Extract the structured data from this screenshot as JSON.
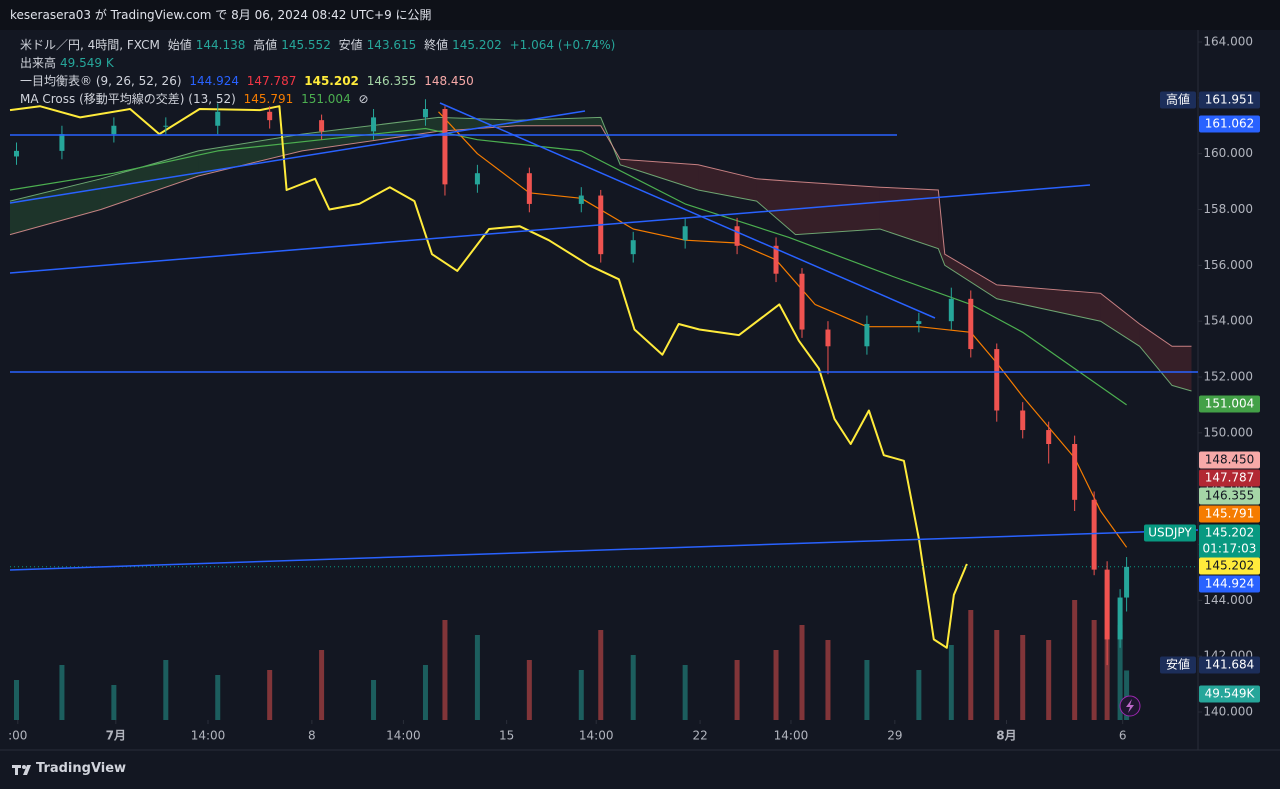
{
  "header": {
    "publish": "keserasera03 が TradingView.com で 8月 06, 2024 08:42 UTC+9 に公開"
  },
  "legend": {
    "symbol": "米ドル／円, 4時間, FXCM",
    "open_label": "始値",
    "open": "144.138",
    "high_label": "高値",
    "high": "145.552",
    "low_label": "安値",
    "low": "143.615",
    "close_label": "終値",
    "close": "145.202",
    "change": "+1.064 (+0.74%)",
    "volume_label": "出来高",
    "volume": "49.549 K",
    "ichimoku_label": "一目均衡表® (9, 26, 52, 26)",
    "ichimoku_values": [
      "144.924",
      "147.787",
      "145.202",
      "146.355",
      "148.450"
    ],
    "ma_label": "MA Cross (移動平均線の交差) (13, 52)",
    "ma_values": [
      "145.791",
      "151.004"
    ],
    "ma_icon": "⊘"
  },
  "footer": {
    "brand": "TradingView"
  },
  "chart_data": {
    "type": "candlestick",
    "grid": false,
    "xlim": [
      0,
      183
    ],
    "ylim": [
      140,
      164
    ],
    "xticks": [
      {
        "value": 1.2,
        "label": ":00"
      },
      {
        "value": 16.3,
        "label": "7月"
      },
      {
        "value": 30.5,
        "label": "14:00"
      },
      {
        "value": 46.5,
        "label": "8"
      },
      {
        "value": 60.6,
        "label": "14:00"
      },
      {
        "value": 76.5,
        "label": "15"
      },
      {
        "value": 90.3,
        "label": "14:00"
      },
      {
        "value": 106.3,
        "label": "22"
      },
      {
        "value": 120.3,
        "label": "14:00"
      },
      {
        "value": 136.3,
        "label": "29"
      },
      {
        "value": 153.5,
        "label": "8月"
      },
      {
        "value": 171.4,
        "label": "6"
      }
    ],
    "yticks": [
      {
        "value": 140,
        "label": "140.000"
      },
      {
        "value": 142,
        "label": "142.000"
      },
      {
        "value": 144,
        "label": "144.000"
      },
      {
        "value": 146,
        "label": "146.000"
      },
      {
        "value": 148,
        "label": "148.000"
      },
      {
        "value": 150,
        "label": "150.000"
      },
      {
        "value": 152,
        "label": "152.000"
      },
      {
        "value": 154,
        "label": "154.000"
      },
      {
        "value": 156,
        "label": "156.000"
      },
      {
        "value": 158,
        "label": "158.000"
      },
      {
        "value": 160,
        "label": "160.000"
      },
      {
        "value": 162,
        "label": "162.000"
      },
      {
        "value": 164,
        "label": "164.000"
      }
    ],
    "up_color": "#26a69a",
    "down_color": "#ef5350",
    "x": [
      1,
      8,
      16,
      24,
      32,
      40,
      48,
      56,
      64,
      67,
      72,
      80,
      88,
      91,
      96,
      104,
      112,
      118,
      122,
      126,
      132,
      140,
      145,
      148,
      152,
      156,
      160,
      164,
      167,
      169,
      171,
      172
    ],
    "open": [
      159.9,
      160.1,
      160.7,
      161.0,
      161.0,
      161.5,
      161.2,
      160.8,
      161.3,
      161.6,
      158.9,
      159.3,
      158.2,
      158.5,
      156.4,
      156.9,
      157.4,
      156.7,
      155.7,
      153.7,
      153.1,
      153.9,
      154.0,
      154.8,
      153.0,
      150.8,
      150.1,
      149.6,
      147.6,
      145.1,
      142.6,
      144.1
    ],
    "high": [
      160.4,
      161.0,
      161.3,
      161.3,
      161.8,
      161.7,
      161.4,
      161.6,
      161.95,
      161.7,
      159.6,
      159.5,
      158.8,
      158.7,
      157.2,
      157.7,
      157.7,
      157.0,
      155.9,
      154.0,
      154.2,
      154.3,
      155.2,
      155.1,
      153.2,
      151.1,
      150.4,
      149.9,
      147.9,
      145.4,
      144.4,
      145.55
    ],
    "low": [
      159.6,
      159.8,
      160.4,
      160.7,
      160.7,
      160.9,
      160.5,
      160.5,
      161.0,
      158.5,
      158.6,
      157.9,
      157.9,
      156.1,
      156.1,
      156.6,
      156.4,
      155.4,
      153.4,
      152.1,
      152.8,
      153.6,
      153.7,
      152.7,
      150.4,
      149.8,
      148.9,
      147.2,
      144.9,
      141.68,
      142.3,
      143.6
    ],
    "close": [
      160.1,
      160.7,
      161.0,
      161.0,
      161.5,
      161.2,
      160.8,
      161.3,
      161.6,
      158.9,
      159.3,
      158.2,
      158.5,
      156.4,
      156.9,
      157.4,
      156.7,
      155.7,
      153.7,
      153.1,
      153.9,
      154.0,
      154.8,
      153.0,
      150.8,
      150.1,
      149.6,
      147.6,
      145.1,
      142.6,
      144.1,
      145.2
    ],
    "volume": [
      40,
      55,
      35,
      60,
      45,
      50,
      70,
      40,
      55,
      100,
      85,
      60,
      50,
      90,
      65,
      55,
      60,
      70,
      95,
      80,
      60,
      50,
      75,
      110,
      90,
      85,
      80,
      120,
      100,
      140,
      95,
      49.549
    ],
    "cloud": {
      "x": [
        0,
        14,
        29,
        45,
        66,
        78,
        91,
        94,
        106,
        115,
        121,
        134,
        143,
        144,
        152,
        168,
        174,
        179,
        182
      ],
      "a": [
        158.3,
        159.1,
        160.1,
        160.7,
        161.3,
        161.2,
        161.3,
        159.6,
        158.7,
        158.3,
        157.1,
        157.3,
        156.6,
        156.0,
        154.8,
        154.0,
        153.1,
        151.7,
        151.5
      ],
      "b": [
        157.1,
        158.0,
        159.2,
        160.1,
        160.8,
        161.0,
        161.0,
        159.8,
        159.6,
        159.1,
        159.0,
        158.8,
        158.7,
        156.4,
        155.3,
        155.0,
        153.9,
        153.1,
        153.1
      ],
      "a_color": "#81c784",
      "b_color": "#ef9a9a",
      "up_fill": "#43a047",
      "down_fill": "#b7413e"
    },
    "lines": [
      {
        "color": "#4caf50",
        "x": [
          0,
          16,
          32,
          48,
          64,
          72,
          88,
          104,
          120,
          136,
          148,
          156,
          164,
          172
        ],
        "values": [
          158.7,
          159.3,
          160.1,
          160.5,
          160.9,
          160.5,
          160.1,
          158.2,
          157.0,
          155.6,
          154.6,
          153.6,
          152.3,
          151.0
        ]
      },
      {
        "color": "#f57c00",
        "x": [
          66,
          72,
          80,
          88,
          96,
          104,
          112,
          118,
          124,
          132,
          140,
          148,
          152,
          156,
          160,
          164,
          168,
          172
        ],
        "values": [
          161.5,
          160.0,
          158.6,
          158.4,
          157.3,
          156.9,
          156.8,
          156.2,
          154.6,
          153.8,
          153.8,
          153.6,
          152.5,
          151.3,
          150.2,
          149.1,
          147.2,
          145.9
        ]
      },
      {
        "color": "#ffeb3b",
        "x": [
          0,
          4.6,
          10.8,
          18.5,
          23,
          29.2,
          38.5,
          41.5,
          42.6,
          47,
          49.2,
          53.8,
          58.5,
          62.3,
          65,
          68.9,
          73.8,
          78.5,
          83,
          89.2,
          93.8,
          96.2,
          100.5,
          103,
          106.2,
          112.3,
          118.5,
          121.5,
          124.6,
          127,
          129.5,
          132.3,
          134.6,
          137.7,
          140,
          142.3,
          144.3,
          145.4,
          147.4
        ],
        "values": [
          161.56,
          161.7,
          161.3,
          161.6,
          160.7,
          161.6,
          161.56,
          161.7,
          158.7,
          159.1,
          158.0,
          158.2,
          158.8,
          158.3,
          156.4,
          155.8,
          157.3,
          157.4,
          156.9,
          156.0,
          155.5,
          153.7,
          152.8,
          153.9,
          153.7,
          153.5,
          154.6,
          153.3,
          152.3,
          150.5,
          149.6,
          150.8,
          149.2,
          149.0,
          146.2,
          142.6,
          142.3,
          144.2,
          145.3
        ]
      }
    ],
    "price_tags": [
      {
        "name": "高値",
        "value": 161.951,
        "color": "#1c2e5a"
      },
      {
        "value": 161.062,
        "color": "#2962ff"
      },
      {
        "value": 151.004,
        "color": "#43a047"
      },
      {
        "value": 148.45,
        "label": "148.450",
        "color": "#f7a9a8",
        "text_color": "#131722"
      },
      {
        "value": 147.787,
        "color": "#b22833"
      },
      {
        "value": 146.355,
        "color": "#a5d6a7",
        "text_color": "#131722"
      },
      {
        "value": 145.791,
        "color": "#f57c00"
      },
      {
        "name": "USDJPY",
        "value": 145.202,
        "countdown": "01:17:03",
        "color": "#089981"
      },
      {
        "value": 145.202,
        "color": "#ffeb3b",
        "text_color": "#131722"
      },
      {
        "value": 144.924,
        "color": "#2962ff"
      },
      {
        "name": "安値",
        "value": 141.684,
        "color": "#1c2e5a"
      },
      {
        "value": 49.549,
        "label": "49.549K",
        "color": "#26a69a"
      }
    ]
  }
}
